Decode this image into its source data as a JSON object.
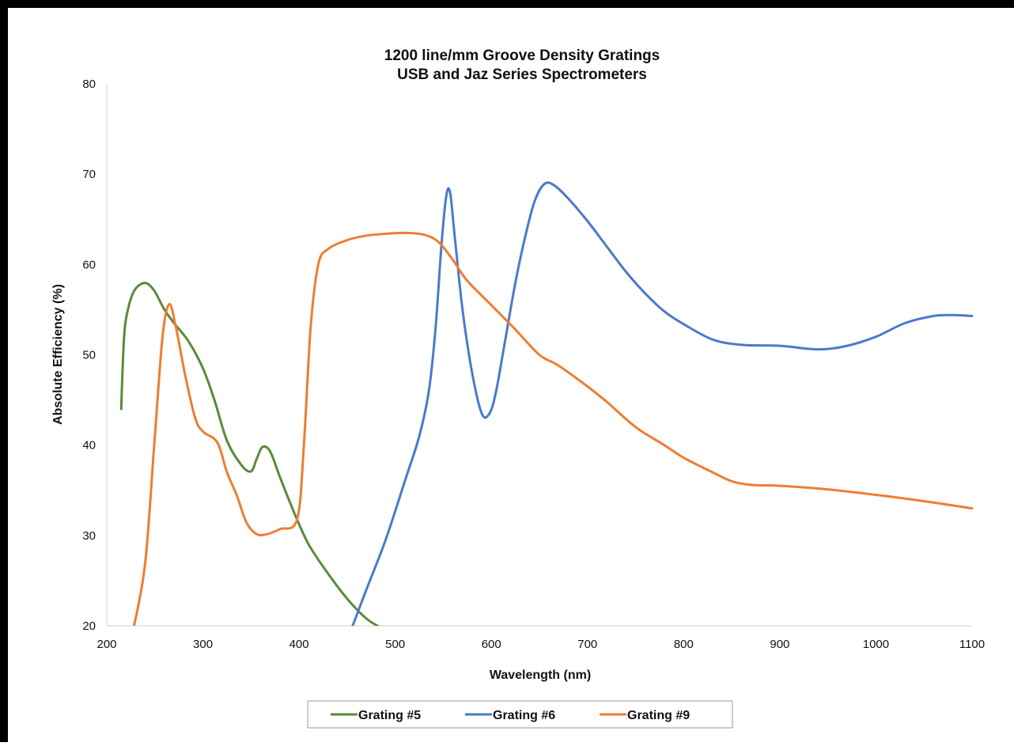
{
  "chart_data": {
    "type": "line",
    "title": "1200 line/mm Groove Density Gratings",
    "subtitle": "USB and Jaz Series Spectrometers",
    "xlabel": "Wavelength (nm)",
    "ylabel": "Absolute Efficiency (%)",
    "xlim": [
      200,
      1100
    ],
    "ylim": [
      20,
      80
    ],
    "x_ticks": [
      200,
      300,
      400,
      500,
      600,
      700,
      800,
      900,
      1000,
      1100
    ],
    "y_ticks": [
      20,
      30,
      40,
      50,
      60,
      70,
      80
    ],
    "grid": false,
    "legend_position": "bottom",
    "series": [
      {
        "name": "Grating #5",
        "color": "#5a8a3c",
        "points": [
          [
            215,
            44
          ],
          [
            218,
            52
          ],
          [
            222,
            55
          ],
          [
            228,
            57
          ],
          [
            235,
            57.8
          ],
          [
            242,
            57.9
          ],
          [
            250,
            57
          ],
          [
            260,
            55
          ],
          [
            270,
            53.5
          ],
          [
            285,
            51.5
          ],
          [
            300,
            48.5
          ],
          [
            312,
            45
          ],
          [
            325,
            40.5
          ],
          [
            340,
            37.8
          ],
          [
            350,
            37.1
          ],
          [
            356,
            38.5
          ],
          [
            362,
            39.8
          ],
          [
            370,
            39.3
          ],
          [
            380,
            36.5
          ],
          [
            395,
            32.5
          ],
          [
            410,
            29
          ],
          [
            430,
            25.8
          ],
          [
            450,
            23
          ],
          [
            470,
            20.8
          ],
          [
            485,
            19.8
          ]
        ]
      },
      {
        "name": "Grating #6",
        "color": "#4a7acb",
        "points": [
          [
            455,
            19.8
          ],
          [
            470,
            24
          ],
          [
            490,
            29.5
          ],
          [
            510,
            36
          ],
          [
            525,
            41
          ],
          [
            535,
            46
          ],
          [
            542,
            53
          ],
          [
            548,
            62
          ],
          [
            553,
            67.5
          ],
          [
            557,
            68
          ],
          [
            562,
            63
          ],
          [
            570,
            55
          ],
          [
            580,
            48
          ],
          [
            590,
            43.5
          ],
          [
            598,
            43.5
          ],
          [
            605,
            46
          ],
          [
            615,
            52
          ],
          [
            625,
            58
          ],
          [
            635,
            63
          ],
          [
            645,
            67
          ],
          [
            655,
            68.9
          ],
          [
            665,
            68.8
          ],
          [
            680,
            67.3
          ],
          [
            700,
            64.8
          ],
          [
            720,
            62
          ],
          [
            740,
            59.2
          ],
          [
            760,
            56.8
          ],
          [
            780,
            54.8
          ],
          [
            800,
            53.4
          ],
          [
            830,
            51.7
          ],
          [
            860,
            51.1
          ],
          [
            900,
            51
          ],
          [
            940,
            50.6
          ],
          [
            970,
            51
          ],
          [
            1000,
            52
          ],
          [
            1030,
            53.5
          ],
          [
            1060,
            54.3
          ],
          [
            1080,
            54.4
          ],
          [
            1100,
            54.3
          ]
        ]
      },
      {
        "name": "Grating #9",
        "color": "#ee7d31",
        "points": [
          [
            228,
            19.8
          ],
          [
            240,
            27
          ],
          [
            250,
            41
          ],
          [
            258,
            52
          ],
          [
            265,
            55.6
          ],
          [
            272,
            53
          ],
          [
            282,
            47.5
          ],
          [
            292,
            43
          ],
          [
            300,
            41.5
          ],
          [
            315,
            40.3
          ],
          [
            325,
            37
          ],
          [
            335,
            34.5
          ],
          [
            345,
            31.5
          ],
          [
            355,
            30.2
          ],
          [
            365,
            30.1
          ],
          [
            380,
            30.7
          ],
          [
            398,
            31.8
          ],
          [
            405,
            40
          ],
          [
            412,
            53
          ],
          [
            420,
            60
          ],
          [
            430,
            61.7
          ],
          [
            450,
            62.7
          ],
          [
            470,
            63.2
          ],
          [
            490,
            63.4
          ],
          [
            510,
            63.5
          ],
          [
            530,
            63.3
          ],
          [
            545,
            62.5
          ],
          [
            560,
            60.5
          ],
          [
            575,
            58.2
          ],
          [
            600,
            55.5
          ],
          [
            625,
            52.8
          ],
          [
            650,
            50
          ],
          [
            670,
            48.8
          ],
          [
            700,
            46.5
          ],
          [
            720,
            44.8
          ],
          [
            750,
            42
          ],
          [
            780,
            40
          ],
          [
            800,
            38.6
          ],
          [
            830,
            37
          ],
          [
            850,
            36
          ],
          [
            870,
            35.6
          ],
          [
            900,
            35.5
          ],
          [
            950,
            35.1
          ],
          [
            1000,
            34.5
          ],
          [
            1050,
            33.8
          ],
          [
            1100,
            33
          ]
        ]
      }
    ]
  }
}
